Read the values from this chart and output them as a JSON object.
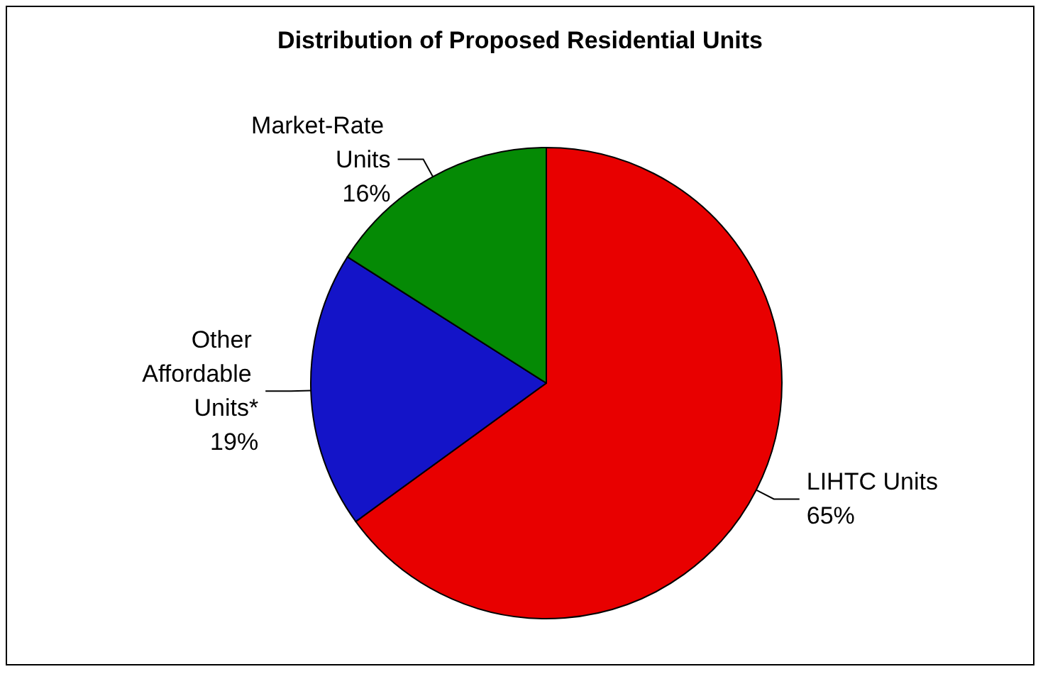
{
  "chart_data": {
    "type": "pie",
    "title": "Distribution of Proposed Residential Units",
    "categories": [
      "LIHTC Units",
      "Other Affordable Units*",
      "Market-Rate Units"
    ],
    "values": [
      65,
      19,
      16
    ],
    "value_labels": [
      "65%",
      "19%",
      "16%"
    ],
    "colors": [
      "#e80000",
      "#1414c8",
      "#058a05"
    ],
    "legend": false
  }
}
